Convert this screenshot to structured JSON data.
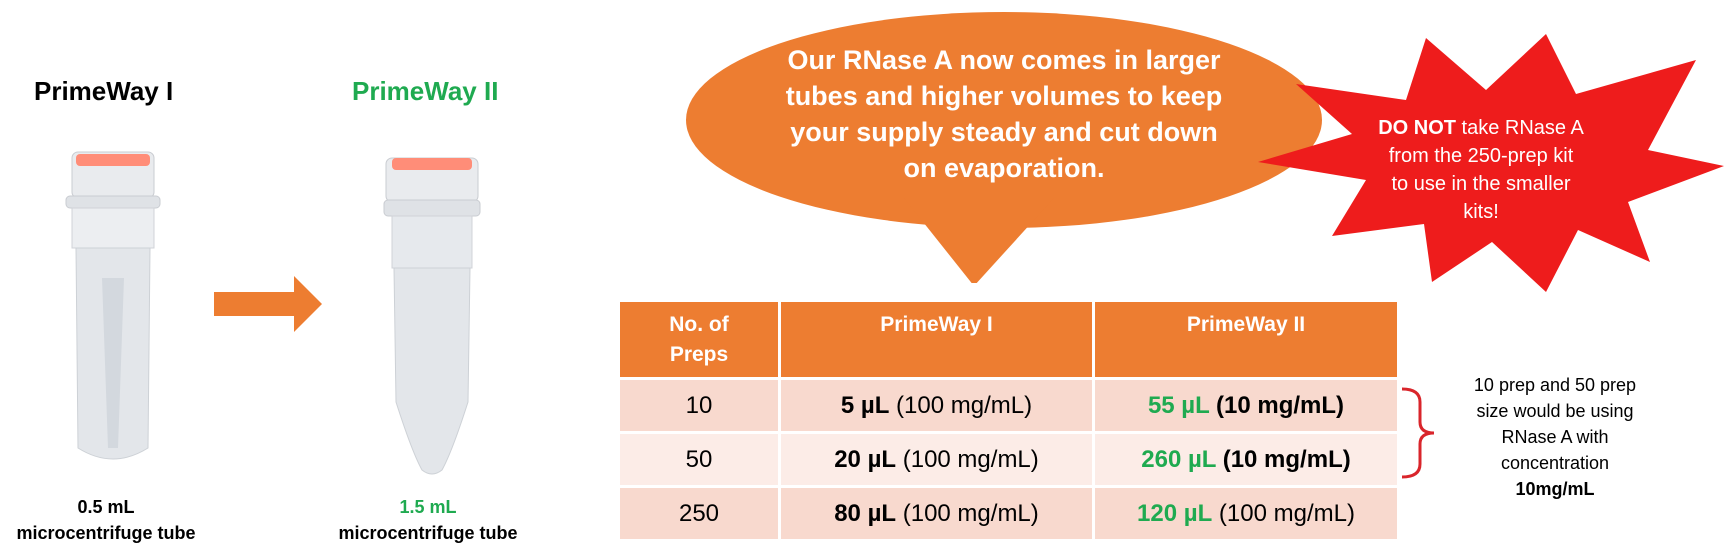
{
  "left": {
    "product1": {
      "title": "PrimeWay I",
      "volume": "0.5 mL",
      "tube": "microcentrifuge tube"
    },
    "product2": {
      "title": "PrimeWay II",
      "volume": "1.5 mL",
      "tube": "microcentrifuge tube"
    }
  },
  "bubble": {
    "line1": "Our RNase A now comes in larger",
    "line2": "tubes and higher volumes to keep",
    "line3": "your supply steady and cut down",
    "line4": "on evaporation."
  },
  "burst": {
    "emphasis": "DO NOT",
    "line1_rest": " take RNase A",
    "line2": "from the 250-prep kit",
    "line3": "to use in the smaller",
    "line4": "kits!"
  },
  "table": {
    "headers": [
      "No. of Preps",
      "PrimeWay I",
      "PrimeWay II"
    ],
    "header_preps_line1": "No. of",
    "header_preps_line2": "Preps",
    "rows": [
      {
        "preps": "10",
        "pw1_vol": "5 µL",
        "pw1_conc": " (100 mg/mL)",
        "pw2_vol": "55 µL",
        "pw2_conc": " (10 mg/mL)"
      },
      {
        "preps": "50",
        "pw1_vol": "20 µL",
        "pw1_conc": " (100 mg/mL)",
        "pw2_vol": "260 µL",
        "pw2_conc": " (10 mg/mL)"
      },
      {
        "preps": "250",
        "pw1_vol": "80 µL",
        "pw1_conc": " (100 mg/mL)",
        "pw2_vol": "120 µL",
        "pw2_conc": " (100 mg/mL)"
      }
    ]
  },
  "note": {
    "line1": "10 prep and 50 prep",
    "line2": "size would be using",
    "line3": "RNase A with",
    "line4": "concentration",
    "line5": "10mg/mL"
  },
  "colors": {
    "orange": "#ed7d31",
    "green": "#1faa50",
    "red": "#ee1c1c",
    "bracket": "#d9252b"
  }
}
